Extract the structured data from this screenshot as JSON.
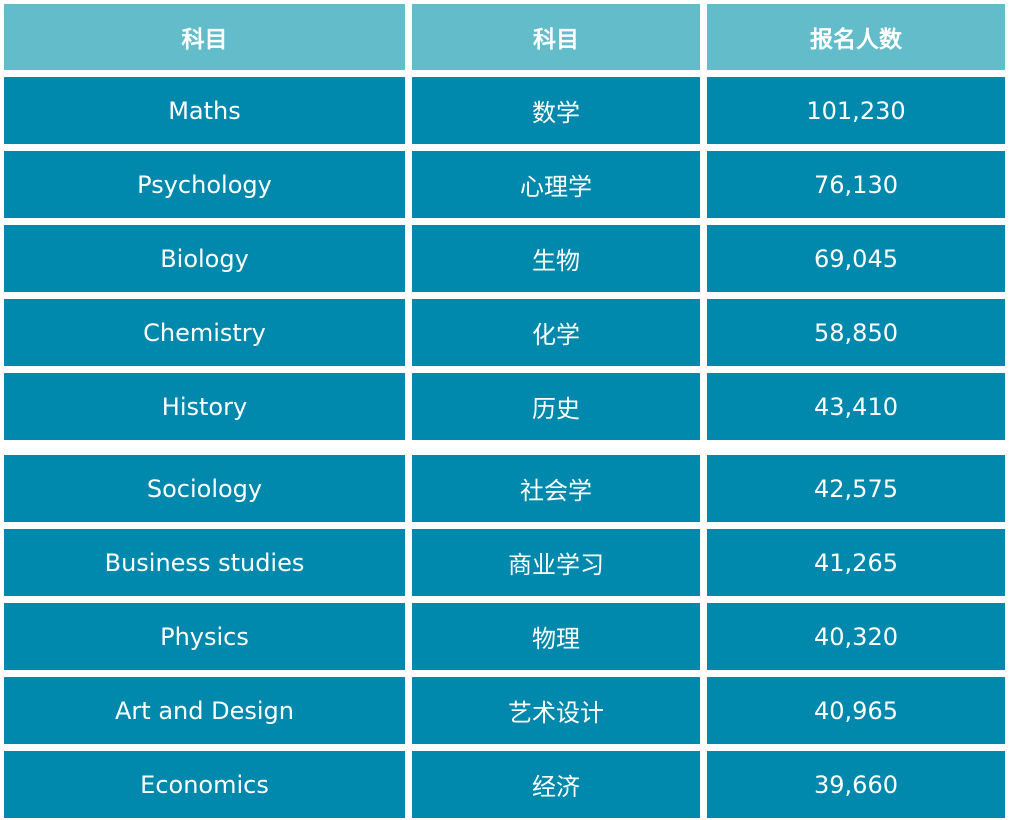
{
  "colors": {
    "header_bg": "#62bcc9",
    "body_bg": "#0088ad",
    "text": "#ffffff",
    "gap": "#ffffff"
  },
  "table": {
    "headers": [
      "科目",
      "科目",
      "报名人数"
    ],
    "rows": [
      [
        "Maths",
        "数学",
        "101,230"
      ],
      [
        "Psychology",
        "心理学",
        "76,130"
      ],
      [
        "Biology",
        "生物",
        "69,045"
      ],
      [
        "Chemistry",
        "化学",
        "58,850"
      ],
      [
        "History",
        "历史",
        "43,410"
      ],
      [
        "Sociology",
        "社会学",
        "42,575"
      ],
      [
        "Business studies",
        "商业学习",
        "41,265"
      ],
      [
        "Physics",
        "物理",
        "40,320"
      ],
      [
        "Art and Design",
        "艺术设计",
        "40,965"
      ],
      [
        "Economics",
        "经济",
        "39,660"
      ]
    ]
  }
}
